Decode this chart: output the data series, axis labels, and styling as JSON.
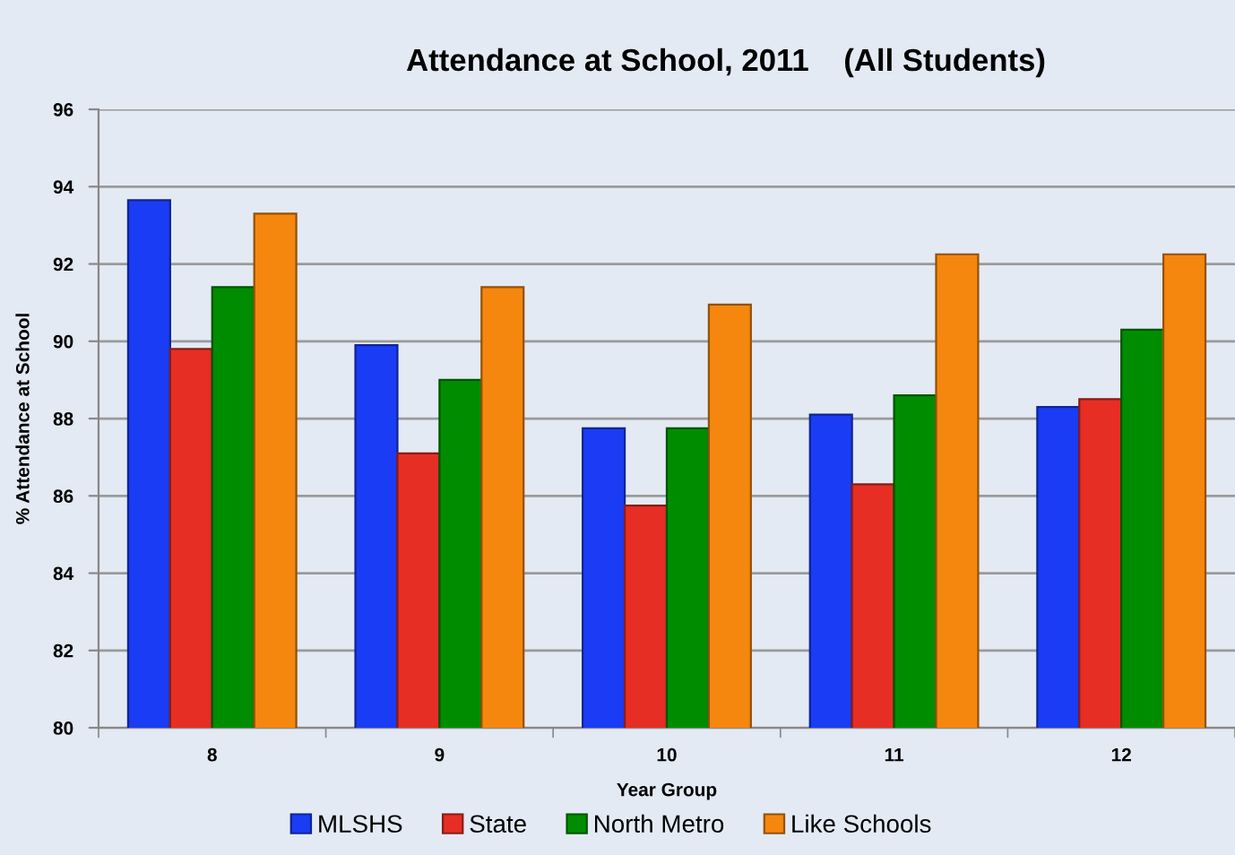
{
  "chart_data": {
    "type": "bar",
    "title": "Attendance at School, 2011    (All Students)",
    "xlabel": "Year Group",
    "ylabel": "% Attendance at School",
    "categories": [
      "8",
      "9",
      "10",
      "11",
      "12"
    ],
    "series": [
      {
        "name": "MLSHS",
        "color": "#1a3cf5",
        "values": [
          93.65,
          89.9,
          87.75,
          88.1,
          88.3
        ]
      },
      {
        "name": "State",
        "color": "#e62e24",
        "values": [
          89.8,
          87.1,
          85.75,
          86.3,
          88.5
        ]
      },
      {
        "name": "North Metro",
        "color": "#008c00",
        "values": [
          91.4,
          89.0,
          87.75,
          88.6,
          90.3
        ]
      },
      {
        "name": "Like Schools",
        "color": "#f5870f",
        "values": [
          93.3,
          91.4,
          90.95,
          92.25,
          92.25
        ]
      }
    ],
    "ylim": [
      80,
      96
    ],
    "yticks": [
      80,
      82,
      84,
      86,
      88,
      90,
      92,
      94,
      96
    ],
    "grid": "y",
    "legend": "bottom"
  }
}
